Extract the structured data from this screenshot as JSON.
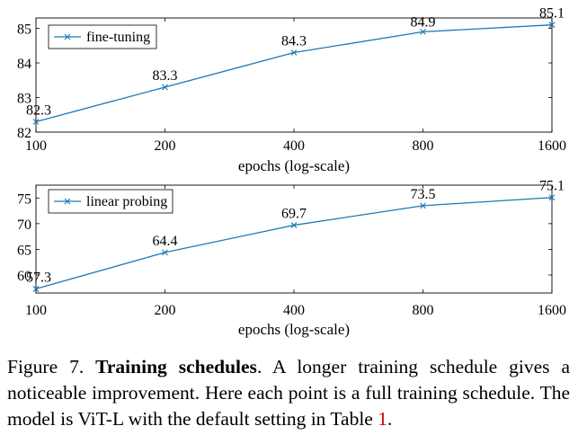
{
  "chart_data": [
    {
      "type": "line",
      "x_scale": "log",
      "x": [
        100,
        200,
        400,
        800,
        1600
      ],
      "x_tick_labels": [
        "100",
        "200",
        "400",
        "800",
        "1600"
      ],
      "xlabel": "epochs (log-scale)",
      "ylim": [
        82,
        85.3
      ],
      "y_ticks": [
        82,
        83,
        84,
        85
      ],
      "series": [
        {
          "name": "fine-tuning",
          "values": [
            82.3,
            83.3,
            84.3,
            84.9,
            85.1
          ],
          "labels": [
            "82.3",
            "83.3",
            "84.3",
            "84.9",
            "85.1"
          ]
        }
      ],
      "legend": "top-left",
      "grid": false,
      "color": "#1f77b4",
      "marker": "x"
    },
    {
      "type": "line",
      "x_scale": "log",
      "x": [
        100,
        200,
        400,
        800,
        1600
      ],
      "x_tick_labels": [
        "100",
        "200",
        "400",
        "800",
        "1600"
      ],
      "xlabel": "epochs (log-scale)",
      "ylim": [
        56.5,
        77.5
      ],
      "y_ticks": [
        60,
        65,
        70,
        75
      ],
      "series": [
        {
          "name": "linear probing",
          "values": [
            57.3,
            64.4,
            69.7,
            73.5,
            75.1
          ],
          "labels": [
            "57.3",
            "64.4",
            "69.7",
            "73.5",
            "75.1"
          ]
        }
      ],
      "legend": "top-left",
      "grid": false,
      "color": "#1f77b4",
      "marker": "x"
    }
  ],
  "caption": {
    "figure_label": "Figure 7.",
    "bold_title": "Training schedules",
    "text_1": ". A longer training schedule gives a noticeable improvement. Here each point is a full training schedule. The model is ViT-L with the default setting in Table ",
    "table_ref": "1",
    "text_2": "."
  }
}
